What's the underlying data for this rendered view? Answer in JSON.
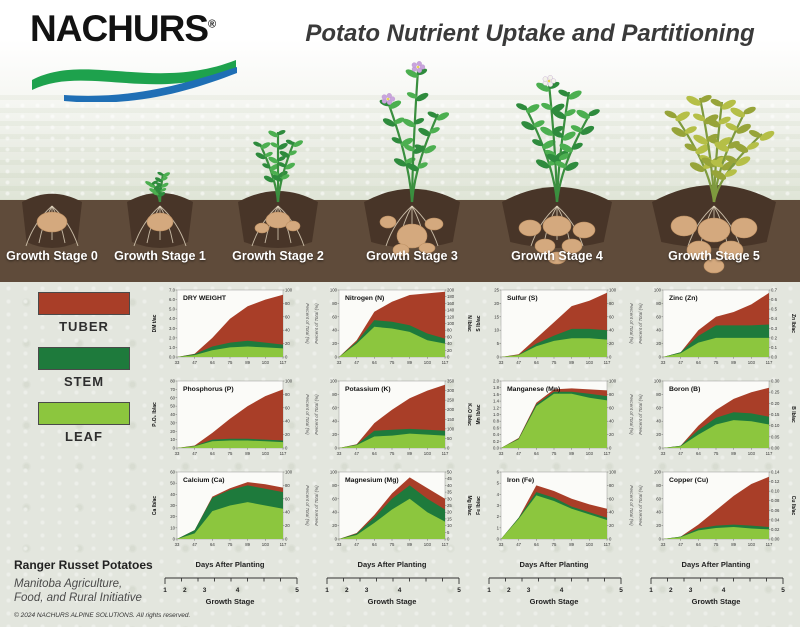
{
  "header": {
    "brand": "NACHURS",
    "registered": "®",
    "title": "Potato Nutrient Uptake and Partitioning"
  },
  "stages": {
    "labels": [
      "Growth Stage 0",
      "Growth Stage 1",
      "Growth Stage 2",
      "Growth Stage 3",
      "Growth Stage 4",
      "Growth Stage 5"
    ]
  },
  "legend": {
    "items": [
      {
        "label": "TUBER",
        "color": "#a93e28"
      },
      {
        "label": "STEM",
        "color": "#1e7a3c"
      },
      {
        "label": "LEAF",
        "color": "#8cc63e"
      }
    ]
  },
  "colors": {
    "tuber": "#a93e28",
    "stem": "#1e7a3c",
    "leaf": "#8cc63e",
    "soil": "#5f4b3a",
    "mound": "#483528",
    "potato": "#d4a97e"
  },
  "axis_footer": {
    "days_label": "Days After Planting",
    "stage_label": "Growth Stage",
    "stage_ticks": [
      "1",
      "2",
      "3",
      "4",
      "5"
    ],
    "count": 4
  },
  "footer": {
    "title": "Ranger Russet Potatoes",
    "subtitle_line1": "Manitoba Agriculture,",
    "subtitle_line2": "Food, and Rural Initiative",
    "copyright": "© 2024 NACHURS ALPINE SOLUTIONS. All rights reserved."
  },
  "chart_data": [
    {
      "type": "area",
      "stacked": true,
      "title": "DRY WEIGHT",
      "unit_label": "DM t/ac",
      "unit_side": "left",
      "unit_axis": {
        "min": 0,
        "max": 7,
        "step": 1,
        "decimals": 1
      },
      "percent_axis": {
        "label": "Percent of Total (%)",
        "min": 0,
        "max": 100,
        "step": 20
      },
      "x_ticks": [
        33,
        47,
        64,
        75,
        89,
        103,
        117
      ],
      "series": [
        {
          "name": "leaf",
          "values": [
            0,
            0.2,
            0.7,
            1.0,
            1.1,
            1.0,
            0.9
          ]
        },
        {
          "name": "stem",
          "values": [
            0,
            0.1,
            0.4,
            0.5,
            0.6,
            0.5,
            0.4
          ]
        },
        {
          "name": "tuber",
          "values": [
            0,
            0.05,
            0.9,
            2.5,
            3.6,
            4.5,
            5.2
          ]
        }
      ]
    },
    {
      "type": "area",
      "stacked": true,
      "title": "Nitrogen (N)",
      "unit_label": "N lb/ac",
      "unit_side": "right",
      "unit_axis": {
        "min": 0,
        "max": 200,
        "step": 20,
        "decimals": 0
      },
      "percent_axis": {
        "label": "Percent of Total (%)",
        "min": 0,
        "max": 100,
        "step": 20
      },
      "x_ticks": [
        33,
        47,
        64,
        75,
        89,
        103,
        117
      ],
      "series": [
        {
          "name": "leaf",
          "values": [
            0,
            40,
            90,
            85,
            75,
            50,
            40
          ]
        },
        {
          "name": "stem",
          "values": [
            0,
            5,
            20,
            20,
            20,
            20,
            15
          ]
        },
        {
          "name": "tuber",
          "values": [
            0,
            5,
            25,
            60,
            90,
            120,
            140
          ]
        }
      ]
    },
    {
      "type": "area",
      "stacked": true,
      "title": "Sulfur (S)",
      "unit_label": "S lb/ac",
      "unit_side": "left",
      "unit_axis": {
        "min": 0,
        "max": 25,
        "step": 5,
        "decimals": 0
      },
      "percent_axis": {
        "label": "Percent of Total (%)",
        "min": 0,
        "max": 100,
        "step": 20
      },
      "x_ticks": [
        33,
        47,
        64,
        75,
        89,
        103,
        117
      ],
      "series": [
        {
          "name": "leaf",
          "values": [
            0,
            0.7,
            4,
            6,
            7,
            7,
            6.5
          ]
        },
        {
          "name": "stem",
          "values": [
            0,
            0.1,
            1,
            2,
            3.5,
            3.5,
            3.5
          ]
        },
        {
          "name": "tuber",
          "values": [
            0,
            0.2,
            2,
            5,
            8.5,
            10.5,
            14
          ]
        }
      ]
    },
    {
      "type": "area",
      "stacked": true,
      "title": "Zinc (Zn)",
      "unit_label": "Zn lb/ac",
      "unit_side": "right",
      "unit_axis": {
        "min": 0,
        "max": 0.7,
        "step": 0.1,
        "decimals": 1
      },
      "percent_axis": {
        "label": "Percent of Total (%)",
        "min": 0,
        "max": 100,
        "step": 20
      },
      "x_ticks": [
        33,
        47,
        64,
        75,
        89,
        103,
        117
      ],
      "series": [
        {
          "name": "leaf",
          "values": [
            0,
            0.04,
            0.15,
            0.2,
            0.2,
            0.2,
            0.2
          ]
        },
        {
          "name": "stem",
          "values": [
            0,
            0.01,
            0.07,
            0.13,
            0.13,
            0.13,
            0.14
          ]
        },
        {
          "name": "tuber",
          "values": [
            0,
            0.0,
            0.06,
            0.09,
            0.14,
            0.22,
            0.33
          ]
        }
      ]
    },
    {
      "type": "area",
      "stacked": true,
      "title": "Phosphorus (P)",
      "unit_label": "P₂O₅ lb/ac",
      "unit_side": "left",
      "unit_axis": {
        "min": 0,
        "max": 80,
        "step": 10,
        "decimals": 0
      },
      "percent_axis": {
        "label": "Percent of Total (%)",
        "min": 0,
        "max": 100,
        "step": 20
      },
      "x_ticks": [
        33,
        47,
        64,
        75,
        89,
        103,
        117
      ],
      "series": [
        {
          "name": "leaf",
          "values": [
            0,
            2,
            8,
            9,
            9,
            8,
            7
          ]
        },
        {
          "name": "stem",
          "values": [
            0,
            0.5,
            2,
            2,
            2,
            2,
            2
          ]
        },
        {
          "name": "tuber",
          "values": [
            0,
            0.5,
            8,
            24,
            39,
            52,
            61
          ]
        }
      ]
    },
    {
      "type": "area",
      "stacked": true,
      "title": "Potassium (K)",
      "unit_label": "K₂O lb/ac",
      "unit_side": "right",
      "unit_axis": {
        "min": 0,
        "max": 350,
        "step": 50,
        "decimals": 0
      },
      "percent_axis": {
        "label": "Percent of Total (%)",
        "min": 0,
        "max": 100,
        "step": 20
      },
      "x_ticks": [
        33,
        47,
        64,
        75,
        89,
        103,
        117
      ],
      "series": [
        {
          "name": "leaf",
          "values": [
            0,
            15,
            60,
            65,
            75,
            70,
            65
          ]
        },
        {
          "name": "stem",
          "values": [
            0,
            3,
            30,
            30,
            25,
            25,
            25
          ]
        },
        {
          "name": "tuber",
          "values": [
            0,
            2,
            40,
            105,
            160,
            205,
            240
          ]
        }
      ]
    },
    {
      "type": "area",
      "stacked": true,
      "title": "Manganese (Mn)",
      "unit_label": "Mn lb/ac",
      "unit_side": "left",
      "unit_axis": {
        "min": 0,
        "max": 2.0,
        "step": 0.2,
        "decimals": 1
      },
      "percent_axis": {
        "label": "Percent of Total (%)",
        "min": 0,
        "max": 100,
        "step": 20
      },
      "x_ticks": [
        33,
        47,
        64,
        75,
        89,
        103,
        117
      ],
      "series": [
        {
          "name": "leaf",
          "values": [
            0,
            0.26,
            1.25,
            1.62,
            1.62,
            1.5,
            1.42
          ]
        },
        {
          "name": "stem",
          "values": [
            0,
            0.02,
            0.05,
            0.06,
            0.06,
            0.12,
            0.13
          ]
        },
        {
          "name": "tuber",
          "values": [
            0,
            0.02,
            0.05,
            0.07,
            0.1,
            0.13,
            0.17
          ]
        }
      ]
    },
    {
      "type": "area",
      "stacked": true,
      "title": "Boron (B)",
      "unit_label": "B lb/ac",
      "unit_side": "right",
      "unit_axis": {
        "min": 0,
        "max": 0.3,
        "step": 0.05,
        "decimals": 2
      },
      "percent_axis": {
        "label": "Percent of Total (%)",
        "min": 0,
        "max": 100,
        "step": 20
      },
      "x_ticks": [
        33,
        47,
        64,
        75,
        89,
        103,
        117
      ],
      "series": [
        {
          "name": "leaf",
          "values": [
            0,
            0.008,
            0.06,
            0.105,
            0.125,
            0.12,
            0.105
          ]
        },
        {
          "name": "stem",
          "values": [
            0,
            0.002,
            0.02,
            0.03,
            0.035,
            0.035,
            0.035
          ]
        },
        {
          "name": "tuber",
          "values": [
            0,
            0.0,
            0.02,
            0.035,
            0.06,
            0.095,
            0.13
          ]
        }
      ]
    },
    {
      "type": "area",
      "stacked": true,
      "title": "Calcium (Ca)",
      "unit_label": "Ca lb/ac",
      "unit_side": "left",
      "unit_axis": {
        "min": 0,
        "max": 60,
        "step": 10,
        "decimals": 0
      },
      "percent_axis": {
        "label": "Percent of Total (%)",
        "min": 0,
        "max": 100,
        "step": 20
      },
      "x_ticks": [
        33,
        47,
        64,
        75,
        89,
        103,
        117
      ],
      "series": [
        {
          "name": "leaf",
          "values": [
            0,
            5,
            25,
            30,
            33,
            30,
            27
          ]
        },
        {
          "name": "stem",
          "values": [
            0,
            3,
            12,
            14,
            15,
            15,
            15
          ]
        },
        {
          "name": "tuber",
          "values": [
            0,
            0,
            1,
            1.5,
            3,
            4,
            4
          ]
        }
      ]
    },
    {
      "type": "area",
      "stacked": true,
      "title": "Magnesium (Mg)",
      "unit_label": "Mg lb/ac",
      "unit_side": "right",
      "unit_axis": {
        "min": 0,
        "max": 50,
        "step": 5,
        "decimals": 0
      },
      "percent_axis": {
        "label": "Percent of Total (%)",
        "min": 0,
        "max": 100,
        "step": 20
      },
      "x_ticks": [
        33,
        47,
        64,
        75,
        89,
        103,
        117
      ],
      "series": [
        {
          "name": "leaf",
          "values": [
            0,
            3,
            12,
            22,
            30,
            20,
            13
          ]
        },
        {
          "name": "stem",
          "values": [
            0,
            1,
            4,
            8,
            10,
            10,
            9
          ]
        },
        {
          "name": "tuber",
          "values": [
            0,
            0.5,
            2,
            4,
            6,
            8,
            8
          ]
        }
      ]
    },
    {
      "type": "area",
      "stacked": true,
      "title": "Iron (Fe)",
      "unit_label": "Fe lb/ac",
      "unit_side": "left",
      "unit_axis": {
        "min": 0,
        "max": 6,
        "step": 1,
        "decimals": 0
      },
      "percent_axis": {
        "label": "Percent of Total (%)",
        "min": 0,
        "max": 100,
        "step": 20
      },
      "x_ticks": [
        33,
        47,
        64,
        75,
        89,
        103,
        117
      ],
      "series": [
        {
          "name": "leaf",
          "values": [
            0,
            1.8,
            3.9,
            3.4,
            2.7,
            2.2,
            1.7
          ]
        },
        {
          "name": "stem",
          "values": [
            0,
            0.1,
            0.3,
            0.3,
            0.2,
            0.2,
            0.2
          ]
        },
        {
          "name": "tuber",
          "values": [
            0,
            0.0,
            0.6,
            0.6,
            0.7,
            0.7,
            0.8
          ]
        }
      ]
    },
    {
      "type": "area",
      "stacked": true,
      "title": "Copper (Cu)",
      "unit_label": "Cu lb/ac",
      "unit_side": "right",
      "unit_axis": {
        "min": 0,
        "max": 0.14,
        "step": 0.02,
        "decimals": 2
      },
      "percent_axis": {
        "label": "Percent of Total (%)",
        "min": 0,
        "max": 100,
        "step": 20
      },
      "x_ticks": [
        33,
        47,
        64,
        75,
        89,
        103,
        117
      ],
      "series": [
        {
          "name": "leaf",
          "values": [
            0,
            0.004,
            0.018,
            0.023,
            0.025,
            0.022,
            0.02
          ]
        },
        {
          "name": "stem",
          "values": [
            0,
            0.001,
            0.004,
            0.005,
            0.005,
            0.006,
            0.005
          ]
        },
        {
          "name": "tuber",
          "values": [
            0,
            0.0,
            0.008,
            0.032,
            0.06,
            0.087,
            0.105
          ]
        }
      ]
    }
  ]
}
